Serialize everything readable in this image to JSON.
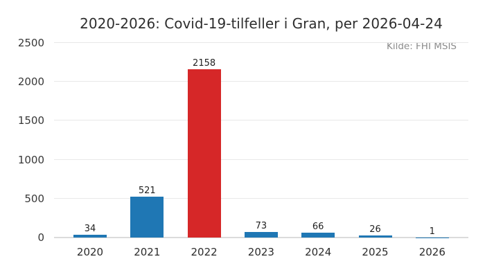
{
  "chart_data": {
    "type": "bar",
    "title": "2020-2026: Covid-19-tilfeller i Gran, per 2026-04-24",
    "annotation": "Kilde: FHI MSIS",
    "categories": [
      "2020",
      "2021",
      "2022",
      "2023",
      "2024",
      "2025",
      "2026"
    ],
    "values": [
      34,
      521,
      2158,
      73,
      66,
      26,
      1
    ],
    "bar_colors": [
      "#1f77b4",
      "#1f77b4",
      "#d62728",
      "#1f77b4",
      "#1f77b4",
      "#1f77b4",
      "#1f77b4"
    ],
    "base_color": "#1f77b4",
    "highlight_color": "#d62728",
    "highlight_category": "2022",
    "xlabel": "",
    "ylabel": "",
    "ylim": [
      0,
      2500
    ],
    "yticks": [
      0,
      500,
      1000,
      1500,
      2000,
      2500
    ],
    "grid": "horizontal",
    "legend": "none",
    "value_labels": true,
    "background": "#ffffff"
  }
}
